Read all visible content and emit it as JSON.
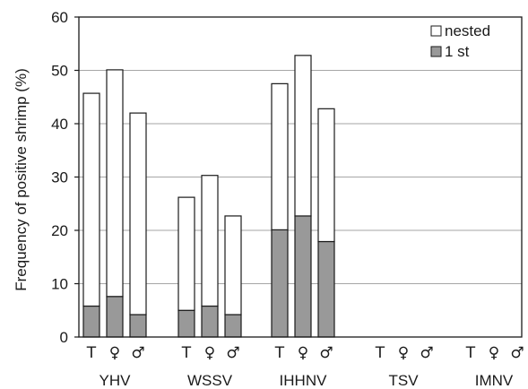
{
  "chart_data": {
    "type": "bar",
    "stacked": true,
    "ylabel": "Frequency of positive shrimp (%)",
    "ylim": [
      0,
      60
    ],
    "yticks": [
      0,
      10,
      20,
      30,
      40,
      50,
      60
    ],
    "grid": true,
    "legend_position": "top-right",
    "groups": [
      "YHV",
      "WSSV",
      "IHHNV",
      "TSV",
      "IMNV"
    ],
    "subcategories": [
      "T",
      "♀",
      "♂"
    ],
    "series": [
      {
        "name": "1 st",
        "color": "#999999",
        "values": [
          [
            5.8,
            7.6,
            4.2
          ],
          [
            5.0,
            5.8,
            4.2
          ],
          [
            20.1,
            22.7,
            17.9
          ],
          [
            0,
            0,
            0
          ],
          [
            0,
            0,
            0
          ]
        ]
      },
      {
        "name": "nested",
        "color": "#ffffff",
        "values": [
          [
            39.9,
            42.5,
            37.8
          ],
          [
            21.2,
            24.5,
            18.5
          ],
          [
            27.4,
            30.1,
            24.9
          ],
          [
            0,
            0,
            0
          ],
          [
            0,
            0,
            0
          ]
        ]
      }
    ],
    "totals": [
      [
        45.7,
        50.1,
        42.0
      ],
      [
        26.2,
        30.3,
        22.7
      ],
      [
        47.5,
        52.8,
        42.8
      ],
      [
        0,
        0,
        0
      ],
      [
        0,
        0,
        0
      ]
    ]
  }
}
